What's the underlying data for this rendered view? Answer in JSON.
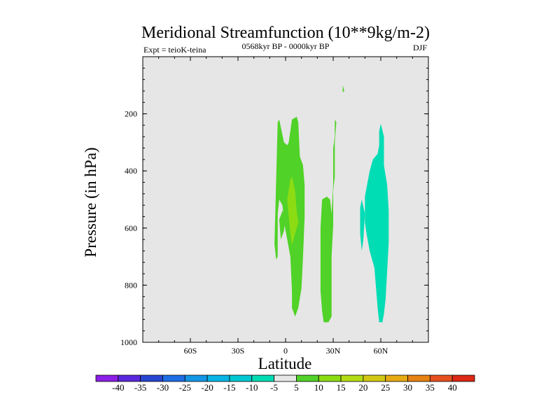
{
  "chart_data": {
    "type": "contour",
    "title": "Meridional Streamfunction (10**9kg/m-2)",
    "subtitle_left": "Expt = teioK-teina",
    "subtitle_center": "0568kyr BP - 0000kyr BP",
    "subtitle_right": "DJF",
    "xlabel": "Latitude",
    "ylabel": "Pressure (in hPa)",
    "xlim": [
      -90,
      90
    ],
    "ylim": [
      1000,
      0
    ],
    "xticks": [
      {
        "value": -60,
        "label": "60S"
      },
      {
        "value": -30,
        "label": "30S"
      },
      {
        "value": 0,
        "label": "0"
      },
      {
        "value": 30,
        "label": "30N"
      },
      {
        "value": 60,
        "label": "60N"
      }
    ],
    "yticks": [
      {
        "value": 200,
        "label": "200"
      },
      {
        "value": 400,
        "label": "400"
      },
      {
        "value": 600,
        "label": "600"
      },
      {
        "value": 800,
        "label": "800"
      },
      {
        "value": 1000,
        "label": "1000"
      }
    ],
    "background_color": "#e6e6e6",
    "colorbar": {
      "labels": [
        "-40",
        "-35",
        "-30",
        "-25",
        "-20",
        "-15",
        "-10",
        "-5",
        "5",
        "10",
        "15",
        "20",
        "25",
        "30",
        "35",
        "40"
      ],
      "colors": [
        "#8c1ee6",
        "#5a28dc",
        "#2846d2",
        "#1e6ee6",
        "#1496e6",
        "#0ab4e6",
        "#00c8d2",
        "#00dcb4",
        "#e6e6e6",
        "#50d228",
        "#8cdc14",
        "#b4dc14",
        "#d2c814",
        "#e6aa14",
        "#e68214",
        "#e6501e",
        "#dc2814"
      ]
    },
    "regions": [
      {
        "level": "5 to 10",
        "color": "#50d228",
        "polygon": [
          [
            -7,
            655
          ],
          [
            -5,
            230
          ],
          [
            -4,
            220
          ],
          [
            -1,
            300
          ],
          [
            1,
            310
          ],
          [
            2,
            300
          ],
          [
            3,
            260
          ],
          [
            4,
            220
          ],
          [
            7,
            210
          ],
          [
            8,
            230
          ],
          [
            9,
            350
          ],
          [
            11,
            380
          ],
          [
            12,
            450
          ],
          [
            12,
            560
          ],
          [
            11,
            700
          ],
          [
            10,
            810
          ],
          [
            8,
            880
          ],
          [
            6,
            910
          ],
          [
            4,
            880
          ],
          [
            4,
            820
          ],
          [
            3,
            700
          ],
          [
            1,
            640
          ],
          [
            -1,
            580
          ],
          [
            -2,
            520
          ],
          [
            -4,
            500
          ],
          [
            -5,
            550
          ],
          [
            -5,
            700
          ],
          [
            -6,
            710
          ]
        ]
      },
      {
        "level": "10 to 15",
        "color": "#8cdc14",
        "polygon": [
          [
            2,
            560
          ],
          [
            1,
            500
          ],
          [
            3,
            430
          ],
          [
            4,
            420
          ],
          [
            6,
            470
          ],
          [
            7,
            540
          ],
          [
            8,
            580
          ],
          [
            6,
            620
          ],
          [
            4,
            660
          ],
          [
            3,
            620
          ]
        ]
      },
      {
        "level": "5 to 10",
        "color": "#50d228",
        "polygon": [
          [
            -4,
            570
          ],
          [
            -2,
            540
          ],
          [
            0,
            560
          ],
          [
            -1,
            610
          ],
          [
            -3,
            640
          ]
        ]
      },
      {
        "level": "5 to 10",
        "color": "#50d228",
        "polygon": [
          [
            22,
            680
          ],
          [
            22,
            600
          ],
          [
            23,
            500
          ],
          [
            26,
            490
          ],
          [
            28,
            500
          ],
          [
            29,
            550
          ],
          [
            30,
            450
          ],
          [
            30,
            320
          ],
          [
            31,
            280
          ],
          [
            31,
            220
          ],
          [
            32,
            230
          ],
          [
            31,
            300
          ],
          [
            31,
            420
          ],
          [
            30,
            470
          ],
          [
            30,
            590
          ],
          [
            29,
            700
          ],
          [
            29,
            820
          ],
          [
            29,
            910
          ],
          [
            27,
            930
          ],
          [
            24,
            930
          ],
          [
            23,
            890
          ],
          [
            22,
            820
          ]
        ]
      },
      {
        "level": "5 to 10",
        "color": "#50d228",
        "polygon": [
          [
            36,
            110
          ],
          [
            36,
            100
          ],
          [
            37,
            120
          ],
          [
            36,
            125
          ]
        ]
      },
      {
        "level": "-10 to -5",
        "color": "#00dcb4",
        "polygon": [
          [
            50,
            580
          ],
          [
            50,
            490
          ],
          [
            53,
            400
          ],
          [
            55,
            360
          ],
          [
            58,
            340
          ],
          [
            59,
            310
          ],
          [
            59,
            260
          ],
          [
            60,
            235
          ],
          [
            62,
            280
          ],
          [
            62,
            380
          ],
          [
            64,
            450
          ],
          [
            65,
            540
          ],
          [
            65,
            650
          ],
          [
            64,
            750
          ],
          [
            63,
            850
          ],
          [
            62,
            900
          ],
          [
            61,
            930
          ],
          [
            59,
            930
          ],
          [
            58,
            880
          ],
          [
            57,
            810
          ],
          [
            56,
            740
          ],
          [
            55,
            720
          ],
          [
            53,
            680
          ],
          [
            52,
            650
          ],
          [
            51,
            620
          ]
        ]
      },
      {
        "level": "-10 to -5",
        "color": "#00dcb4",
        "polygon": [
          [
            47,
            620
          ],
          [
            47,
            530
          ],
          [
            48,
            500
          ],
          [
            50,
            550
          ],
          [
            49,
            640
          ],
          [
            48,
            680
          ]
        ]
      }
    ]
  }
}
